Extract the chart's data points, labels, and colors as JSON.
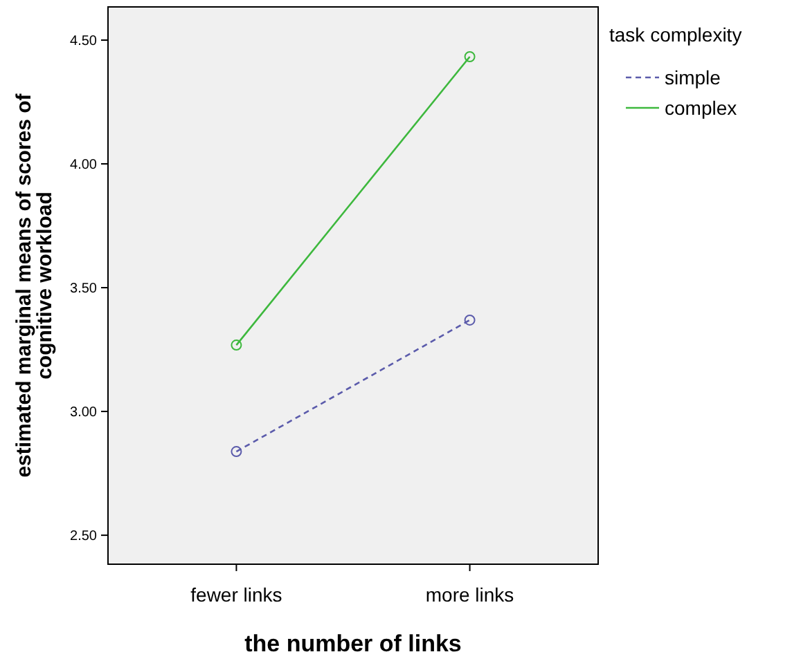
{
  "chart_data": {
    "type": "line",
    "xlabel": "the number of links",
    "ylabel": "estimated marginal means of scores of cognitive workload",
    "legend_title": "task complexity",
    "categories": [
      "fewer links",
      "more links"
    ],
    "series": [
      {
        "name": "simple",
        "color": "#5b5bab",
        "values": [
          2.838,
          3.369
        ],
        "line_style": "dashed"
      },
      {
        "name": "complex",
        "color": "#3db83d",
        "values": [
          3.268,
          4.433
        ],
        "line_style": "solid"
      }
    ],
    "ylim": [
      2.383,
      4.634
    ],
    "yticks": [
      {
        "value": 2.5,
        "label": "2.50"
      },
      {
        "value": 3,
        "label": "3.00"
      },
      {
        "value": 3.5,
        "label": "3.50"
      },
      {
        "value": 4,
        "label": "4.00"
      },
      {
        "value": 4.5,
        "label": "4.50"
      }
    ],
    "marker": "circle",
    "legend": "right",
    "grid": false
  }
}
